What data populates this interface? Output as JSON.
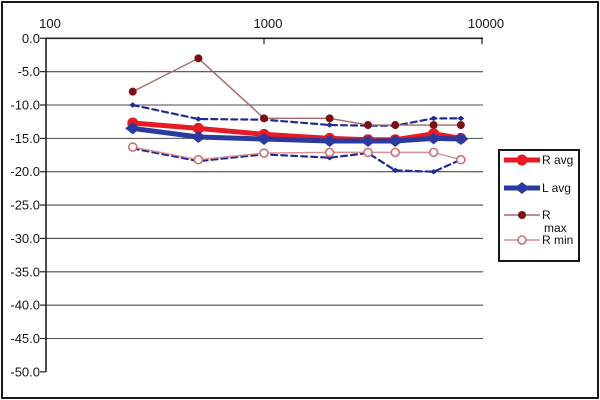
{
  "chart_data": {
    "type": "line",
    "title": "",
    "x_axis": {
      "scale": "log",
      "position": "top",
      "tick_labels": [
        "100",
        "1000",
        "10000"
      ],
      "tick_values": [
        100,
        1000,
        10000
      ],
      "min": 100,
      "max": 12000
    },
    "y_axis": {
      "tick_labels": [
        "0.0",
        "-5.0",
        "-10.0",
        "-15.0",
        "-20.0",
        "-25.0",
        "-30.0",
        "-35.0",
        "-40.0",
        "-45.0",
        "-50.0"
      ],
      "tick_values": [
        0,
        -5,
        -10,
        -15,
        -20,
        -25,
        -30,
        -35,
        -40,
        -45,
        -50
      ],
      "min": -50,
      "max": 0
    },
    "grid": true,
    "x": [
      250,
      500,
      1000,
      2000,
      3000,
      4000,
      6000,
      8000
    ],
    "series": [
      {
        "id": "r_avg",
        "name": "R avg",
        "color": "#e61b23",
        "line": "solid",
        "width": 5,
        "marker": "circle-filled",
        "marker_size": 11,
        "values": [
          -12.7,
          -13.5,
          -14.4,
          -15.0,
          -15.2,
          -15.2,
          -14.3,
          -15.0
        ]
      },
      {
        "id": "l_avg",
        "name": "L avg",
        "color": "#2b3a9e",
        "line": "solid",
        "width": 5,
        "marker": "diamond-filled",
        "marker_size": 13,
        "values": [
          -13.5,
          -14.8,
          -15.1,
          -15.4,
          -15.4,
          -15.4,
          -15.0,
          -15.1
        ]
      },
      {
        "id": "r_max",
        "name": "R max",
        "color": "#a36a6a",
        "marker_color": "#7d1013",
        "line": "thin",
        "width": 1.4,
        "marker": "circle-filled",
        "marker_size": 8,
        "values": [
          -8,
          -3,
          -12,
          -12,
          -13,
          -13,
          -13,
          -13
        ]
      },
      {
        "id": "r_min",
        "name": "R min",
        "color": "#d98f92",
        "marker_color": "#cc6f73",
        "line": "thin",
        "width": 1.4,
        "marker": "circle-open",
        "marker_size": 8,
        "values": [
          -16.3,
          -18.2,
          -17.2,
          -17.1,
          -17.1,
          -17.1,
          -17.1,
          -18.2
        ]
      },
      {
        "id": "dashed_upper",
        "name": "unlabeled dashed upper band",
        "color": "#222a94",
        "line": "dashed",
        "width": 2.2,
        "marker": "diamond-filled",
        "marker_size": 6,
        "values": [
          -10.0,
          -12.1,
          -12.2,
          -13.0,
          -13.1,
          -13.1,
          -12.0,
          -12.0
        ]
      },
      {
        "id": "dashed_lower",
        "name": "unlabeled dashed lower band",
        "color": "#222a94",
        "line": "dashed",
        "width": 2.2,
        "marker": "diamond-filled",
        "marker_size": 6,
        "values": [
          -16.5,
          -18.4,
          -17.4,
          -17.9,
          -17.2,
          -19.8,
          -20.0,
          -18.2
        ]
      }
    ],
    "legend": {
      "position": "right",
      "entries": [
        {
          "label": "R avg",
          "series": "r_avg"
        },
        {
          "label": "L avg",
          "series": "l_avg"
        },
        {
          "label": "R",
          "label2": "max",
          "series": "r_max"
        },
        {
          "label": "R min",
          "series": "r_min"
        }
      ]
    },
    "colors": {
      "grid": "#4a4a4a",
      "axis": "#222222",
      "frame": "#1a1a1a",
      "background": "#ffffff"
    }
  }
}
